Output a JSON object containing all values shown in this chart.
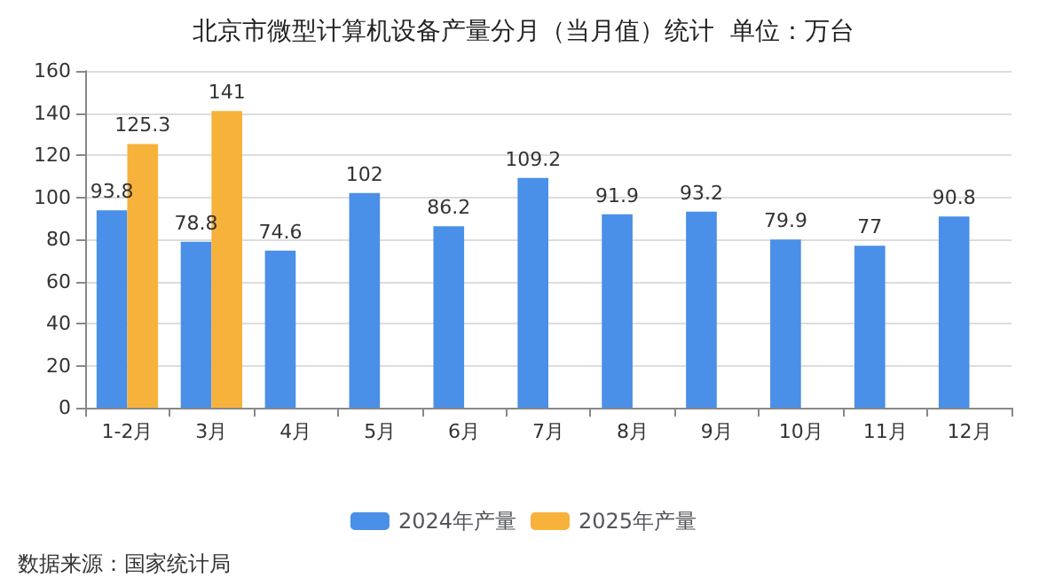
{
  "chart_data": {
    "type": "bar",
    "title": "北京市微型计算机设备产量分月（当月值）统计  单位：万台",
    "categories": [
      "1-2月",
      "3月",
      "4月",
      "5月",
      "6月",
      "7月",
      "8月",
      "9月",
      "10月",
      "11月",
      "12月"
    ],
    "series": [
      {
        "name": "2024年产量",
        "color": "#4a8fe8",
        "values": [
          93.8,
          78.8,
          74.6,
          102,
          86.2,
          109.2,
          91.9,
          93.2,
          79.9,
          77,
          90.8
        ]
      },
      {
        "name": "2025年产量",
        "color": "#f7b23b",
        "values": [
          125.3,
          141,
          null,
          null,
          null,
          null,
          null,
          null,
          null,
          null,
          null
        ]
      }
    ],
    "ylim": [
      0,
      160
    ],
    "yticks": [
      0,
      20,
      40,
      60,
      80,
      100,
      120,
      140,
      160
    ],
    "grid": "y",
    "legend": "bottom",
    "data_labels": true,
    "annotations": [
      "数据来源：国家统计局"
    ]
  }
}
